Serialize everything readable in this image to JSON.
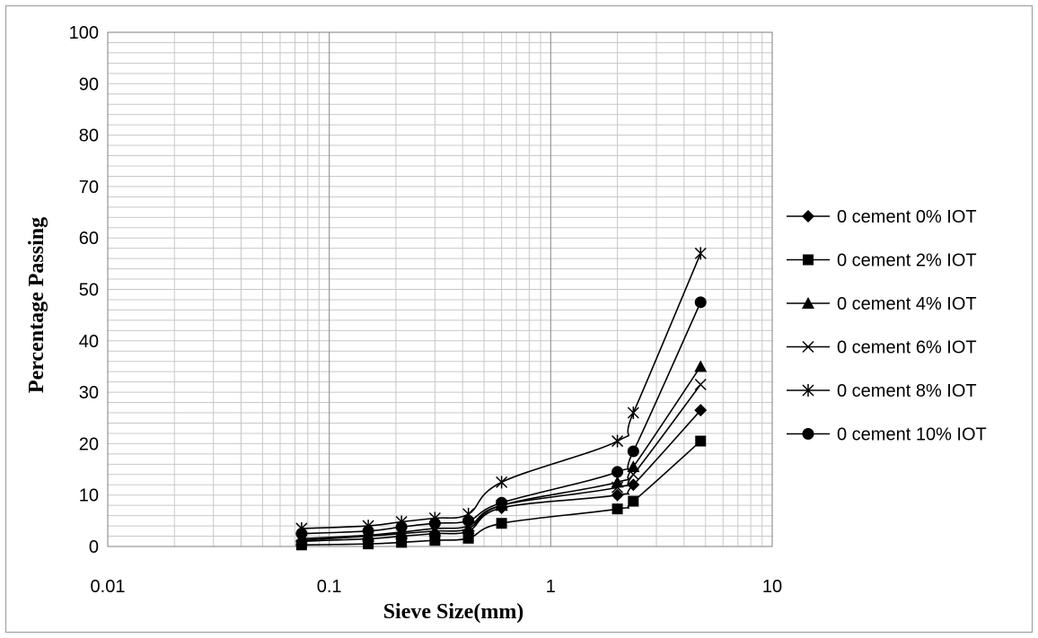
{
  "chart_data": {
    "type": "line",
    "title": "",
    "xlabel": "Sieve Size(mm)",
    "ylabel": "Percentage Passing",
    "x_scale": "log",
    "xlim": [
      0.01,
      10
    ],
    "ylim": [
      0,
      100
    ],
    "x_ticks": [
      "0.01",
      "0.1",
      "1",
      "10"
    ],
    "y_ticks": [
      "0",
      "10",
      "20",
      "30",
      "40",
      "50",
      "60",
      "70",
      "80",
      "90",
      "100"
    ],
    "grid": true,
    "legend_position": "right",
    "x": [
      0.075,
      0.15,
      0.212,
      0.3,
      0.425,
      0.6,
      2.0,
      2.36,
      4.75
    ],
    "series": [
      {
        "name": "0 cement 0% IOT",
        "marker": "diamond",
        "values": [
          1.0,
          1.5,
          2.0,
          2.5,
          3.0,
          7.5,
          10.0,
          12.0,
          26.5
        ]
      },
      {
        "name": "0 cement 2% IOT",
        "marker": "square",
        "values": [
          0.3,
          0.5,
          0.8,
          1.2,
          1.6,
          4.5,
          7.3,
          8.8,
          20.5
        ]
      },
      {
        "name": "0 cement 4% IOT",
        "marker": "triangle",
        "values": [
          1.2,
          2.0,
          2.5,
          3.0,
          3.5,
          8.0,
          12.5,
          15.5,
          35.0
        ]
      },
      {
        "name": "0 cement 6% IOT",
        "marker": "x",
        "values": [
          1.5,
          2.2,
          2.8,
          3.5,
          4.0,
          8.0,
          11.5,
          14.0,
          31.5
        ]
      },
      {
        "name": "0 cement 8% IOT",
        "marker": "star",
        "values": [
          3.5,
          4.0,
          4.8,
          5.5,
          6.3,
          12.5,
          20.5,
          26.0,
          57.0
        ]
      },
      {
        "name": "0 cement 10% IOT",
        "marker": "circle",
        "values": [
          2.5,
          3.0,
          3.8,
          4.5,
          5.0,
          8.5,
          14.5,
          18.5,
          47.5
        ]
      }
    ]
  }
}
